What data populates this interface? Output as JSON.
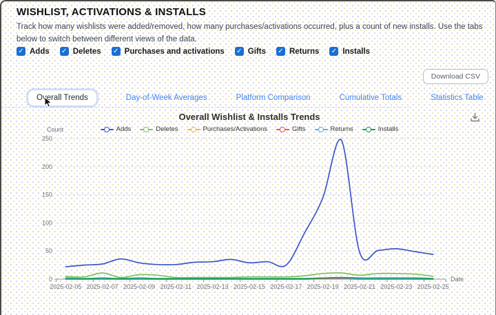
{
  "header": {
    "title": "WISHLIST, ACTIVATIONS & INSTALLS",
    "description": "Track how many wishlists were added/removed, how many purchases/activations occurred, plus a count of new installs. Use the tabs below to switch between different views of the data."
  },
  "filters": {
    "checkboxes": [
      {
        "label": "Adds",
        "checked": true
      },
      {
        "label": "Deletes",
        "checked": true
      },
      {
        "label": "Purchases and activations",
        "checked": true
      },
      {
        "label": "Gifts",
        "checked": true
      },
      {
        "label": "Returns",
        "checked": true
      },
      {
        "label": "Installs",
        "checked": true
      }
    ]
  },
  "toolbar": {
    "download_csv_label": "Download CSV"
  },
  "tabs": [
    {
      "label": "Overall Trends",
      "active": true
    },
    {
      "label": "Day-of-Week Averages",
      "active": false
    },
    {
      "label": "Platform Comparison",
      "active": false
    },
    {
      "label": "Cumulative Totals",
      "active": false
    },
    {
      "label": "Statistics Table",
      "active": false
    }
  ],
  "colors": {
    "checkbox_accent": "#1a6fd4",
    "tab_link": "#4285f4"
  },
  "chart_data": {
    "type": "line",
    "title": "Overall Wishlist & Installs Trends",
    "xlabel": "Date",
    "ylabel": "Count",
    "ylim": [
      0,
      250
    ],
    "yticks": [
      0,
      50,
      100,
      150,
      200,
      250
    ],
    "x_tick_interval": 2,
    "grid": true,
    "smooth": true,
    "legend_position": "top",
    "categories": [
      "2025-02-05",
      "2025-02-06",
      "2025-02-07",
      "2025-02-08",
      "2025-02-09",
      "2025-02-10",
      "2025-02-11",
      "2025-02-12",
      "2025-02-13",
      "2025-02-14",
      "2025-02-15",
      "2025-02-16",
      "2025-02-17",
      "2025-02-18",
      "2025-02-19",
      "2025-02-20",
      "2025-02-21",
      "2025-02-22",
      "2025-02-23",
      "2025-02-24",
      "2025-02-25"
    ],
    "series": [
      {
        "name": "Adds",
        "color": "#3b56c8",
        "values": [
          22,
          25,
          27,
          36,
          29,
          26,
          26,
          30,
          31,
          35,
          29,
          31,
          25,
          82,
          145,
          248,
          48,
          51,
          54,
          49,
          44
        ]
      },
      {
        "name": "Deletes",
        "color": "#7cc25f",
        "values": [
          5,
          4,
          11,
          3,
          8,
          7,
          3,
          3,
          3,
          3,
          4,
          4,
          4,
          6,
          10,
          11,
          7,
          10,
          10,
          9,
          5
        ]
      },
      {
        "name": "Purchases/Activations",
        "color": "#f2b63c",
        "values": [
          0,
          0,
          1,
          0,
          0,
          0,
          0,
          0,
          0,
          1,
          0,
          0,
          0,
          0,
          1,
          1,
          0,
          0,
          1,
          0,
          0
        ]
      },
      {
        "name": "Gifts",
        "color": "#e6535a",
        "values": [
          0,
          0,
          0,
          0,
          0,
          0,
          0,
          0,
          0,
          0,
          0,
          0,
          0,
          0,
          1,
          1,
          0,
          0,
          0,
          0,
          0
        ]
      },
      {
        "name": "Returns",
        "color": "#57a9e6",
        "values": [
          1,
          1,
          1,
          1,
          1,
          1,
          1,
          1,
          1,
          1,
          1,
          1,
          1,
          1,
          2,
          2,
          1,
          1,
          1,
          1,
          1
        ]
      },
      {
        "name": "Installs",
        "color": "#169b4e",
        "values": [
          2,
          1,
          2,
          1,
          2,
          1,
          1,
          1,
          1,
          1,
          1,
          1,
          1,
          1,
          2,
          3,
          2,
          2,
          2,
          2,
          1
        ]
      }
    ]
  }
}
